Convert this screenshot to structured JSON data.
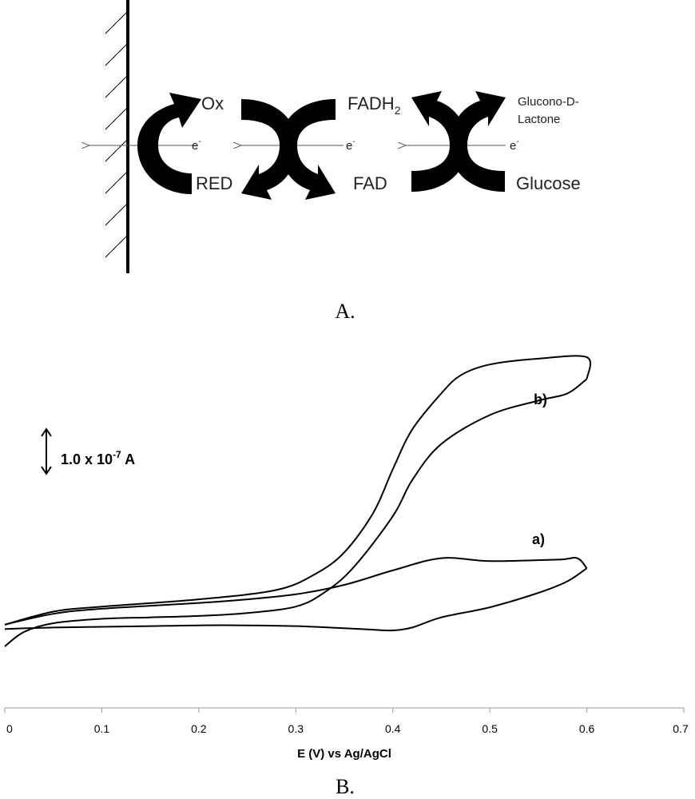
{
  "panel_a": {
    "caption": "A.",
    "labels": {
      "ox": "Ox",
      "red": "RED",
      "fadh": "FADH",
      "fadh_sub": "2",
      "fad": "FAD",
      "gluconolactone_line1": "Glucono-D-",
      "gluconolactone_line2": "Lactone",
      "glucose": "Glucose",
      "electron": "e",
      "electron_sup": "-"
    },
    "colors": {
      "ink": "#000000",
      "arrow": "#555555"
    }
  },
  "panel_b": {
    "caption": "B.",
    "scale_bar": {
      "text": "1.0 x 10",
      "exponent": "-7",
      "unit": " A",
      "value_A": 1e-07
    },
    "curve_labels": {
      "a": "a)",
      "b": "b)"
    }
  },
  "chart_data": {
    "type": "line",
    "title": "",
    "xlabel": "E (V) vs Ag/AgCl",
    "ylabel": "",
    "xlim": [
      0,
      0.7
    ],
    "x_ticks": [
      "0",
      "0.1",
      "0.2",
      "0.3",
      "0.4",
      "0.5",
      "0.6",
      "0.7"
    ],
    "y_unit": "1e-7 A (relative, arbitrary offset)",
    "ylim": [
      -0.3,
      4.2
    ],
    "grid": false,
    "legend": "none",
    "series": [
      {
        "name": "a)",
        "forward": [
          [
            0.0,
            0.14
          ],
          [
            0.05,
            0.16
          ],
          [
            0.1,
            0.17
          ],
          [
            0.15,
            0.18
          ],
          [
            0.2,
            0.19
          ],
          [
            0.25,
            0.19
          ],
          [
            0.3,
            0.18
          ],
          [
            0.35,
            0.15
          ],
          [
            0.38,
            0.13
          ],
          [
            0.4,
            0.12
          ],
          [
            0.42,
            0.16
          ],
          [
            0.45,
            0.3
          ],
          [
            0.5,
            0.44
          ],
          [
            0.55,
            0.64
          ],
          [
            0.58,
            0.8
          ],
          [
            0.6,
            0.98
          ]
        ],
        "reverse": [
          [
            0.6,
            0.98
          ],
          [
            0.59,
            1.12
          ],
          [
            0.57,
            1.1
          ],
          [
            0.5,
            1.08
          ],
          [
            0.45,
            1.12
          ],
          [
            0.4,
            0.95
          ],
          [
            0.35,
            0.75
          ],
          [
            0.3,
            0.62
          ],
          [
            0.25,
            0.55
          ],
          [
            0.2,
            0.5
          ],
          [
            0.1,
            0.42
          ],
          [
            0.05,
            0.35
          ],
          [
            0.0,
            0.2
          ]
        ]
      },
      {
        "name": "b)",
        "forward": [
          [
            0.0,
            -0.1
          ],
          [
            0.02,
            0.1
          ],
          [
            0.05,
            0.22
          ],
          [
            0.1,
            0.28
          ],
          [
            0.15,
            0.3
          ],
          [
            0.2,
            0.32
          ],
          [
            0.25,
            0.36
          ],
          [
            0.3,
            0.45
          ],
          [
            0.33,
            0.65
          ],
          [
            0.36,
            1.0
          ],
          [
            0.4,
            1.7
          ],
          [
            0.42,
            2.2
          ],
          [
            0.45,
            2.7
          ],
          [
            0.5,
            3.1
          ],
          [
            0.55,
            3.3
          ],
          [
            0.58,
            3.4
          ],
          [
            0.6,
            3.6
          ]
        ],
        "reverse": [
          [
            0.6,
            3.6
          ],
          [
            0.6,
            3.9
          ],
          [
            0.55,
            3.88
          ],
          [
            0.5,
            3.8
          ],
          [
            0.47,
            3.65
          ],
          [
            0.45,
            3.4
          ],
          [
            0.42,
            2.9
          ],
          [
            0.4,
            2.35
          ],
          [
            0.38,
            1.75
          ],
          [
            0.35,
            1.2
          ],
          [
            0.32,
            0.9
          ],
          [
            0.28,
            0.68
          ],
          [
            0.2,
            0.55
          ],
          [
            0.1,
            0.45
          ],
          [
            0.05,
            0.38
          ],
          [
            0.0,
            0.2
          ]
        ]
      }
    ]
  }
}
